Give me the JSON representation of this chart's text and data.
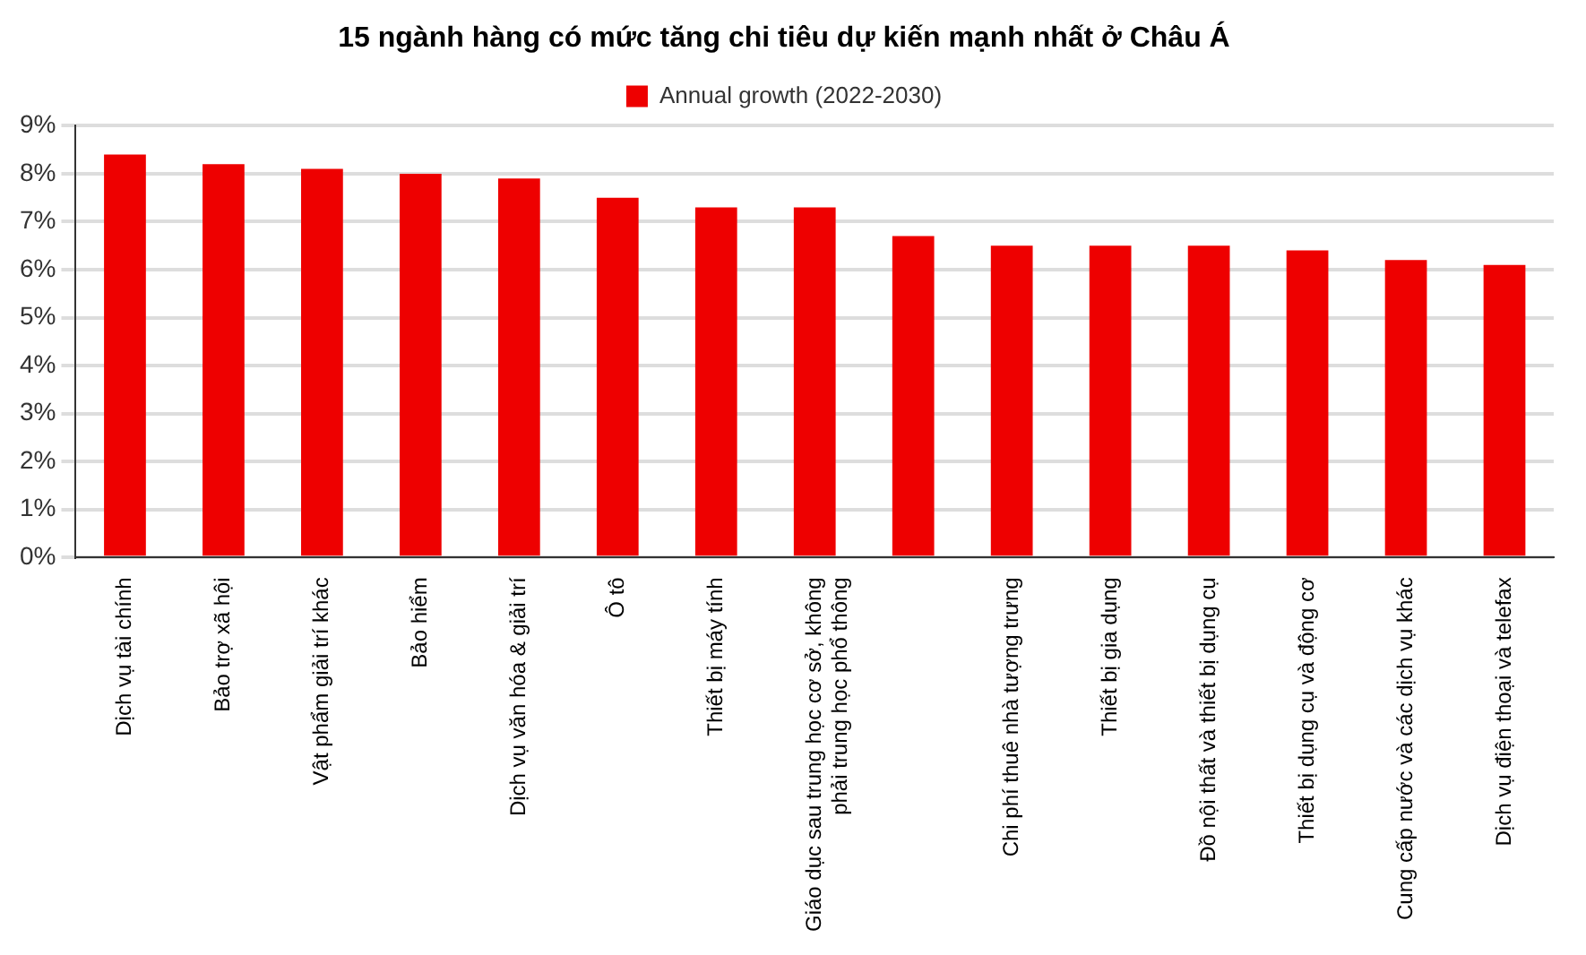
{
  "chart_data": {
    "type": "bar",
    "title": "15 ngành hàng có mức tăng chi tiêu dự kiến mạnh nhất ở Châu Á",
    "categories": [
      "Dịch vụ tài chính",
      "Bảo trợ xã hội",
      "Vật phẩm giải trí khác",
      "Bảo hiểm",
      "Dịch vụ văn hóa & giải trí",
      "Ô tô",
      "Thiết bị máy tính",
      "Giáo dục sau trung học cơ sở, không phải trung học phổ thông",
      null,
      "Chi phí thuê nhà tượng trưng",
      "Thiết bị gia dụng",
      "Đồ nội thất và thiết bị dụng cụ",
      "Thiết bị dụng cụ và động cơ",
      "Cung cấp nước và các dịch vụ khác",
      "Dịch vụ điện thoại và telefax"
    ],
    "series": [
      {
        "name": "Annual growth (2022-2030)",
        "color": "#ee0000",
        "values": [
          8.4,
          8.2,
          8.1,
          8.0,
          7.9,
          7.5,
          7.3,
          7.3,
          6.7,
          6.5,
          6.5,
          6.5,
          6.4,
          6.2,
          6.1
        ]
      }
    ],
    "ylim": [
      0,
      9
    ],
    "yticks": [
      {
        "value": 0,
        "label": "0%"
      },
      {
        "value": 1,
        "label": "1%"
      },
      {
        "value": 2,
        "label": "2%"
      },
      {
        "value": 3,
        "label": "3%"
      },
      {
        "value": 4,
        "label": "4%"
      },
      {
        "value": 5,
        "label": "5%"
      },
      {
        "value": 6,
        "label": "6%"
      },
      {
        "value": 7,
        "label": "7%"
      },
      {
        "value": 8,
        "label": "8%"
      },
      {
        "value": 9,
        "label": "9%"
      }
    ],
    "grid": "y",
    "legend": "top"
  }
}
